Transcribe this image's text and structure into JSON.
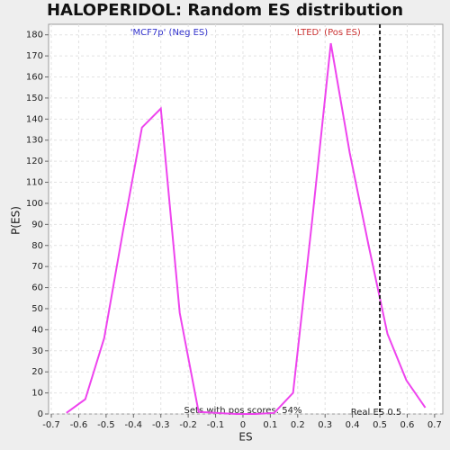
{
  "chart_data": {
    "type": "line",
    "title": "HALOPERIDOL: Random ES distribution",
    "x_label": "ES",
    "y_label": "P(ES)",
    "x": [
      -0.645,
      -0.576,
      -0.507,
      -0.438,
      -0.369,
      -0.3,
      -0.231,
      -0.162,
      -0.093,
      -0.024,
      0.045,
      0.114,
      0.183,
      0.252,
      0.321,
      0.39,
      0.459,
      0.528,
      0.597,
      0.666
    ],
    "series": [
      {
        "name": "P(ES)",
        "color": "#ee44ee",
        "values": [
          0.5,
          7,
          36,
          87,
          136,
          145,
          48,
          1,
          0.5,
          0,
          0,
          0.5,
          10,
          91,
          176,
          124,
          80,
          38,
          16,
          3
        ]
      }
    ],
    "xlim": [
      -0.71,
      0.73
    ],
    "ylim": [
      0,
      185
    ],
    "xticks": [
      -0.7,
      -0.6,
      -0.5,
      -0.4,
      -0.3,
      -0.2,
      -0.1,
      0,
      0.1,
      0.2,
      0.3,
      0.4,
      0.5,
      0.6,
      0.7
    ],
    "yticks": [
      0,
      10,
      20,
      30,
      40,
      50,
      60,
      70,
      80,
      90,
      100,
      110,
      120,
      130,
      140,
      150,
      160,
      170,
      180
    ],
    "grid": true,
    "real_es": 0.5,
    "annotations": {
      "neg": "'MCF7p' (Neg ES)",
      "pos": "'LTED' (Pos ES)",
      "sets": "Sets with pos scores: 54%",
      "real": "Real ES 0.5"
    }
  }
}
